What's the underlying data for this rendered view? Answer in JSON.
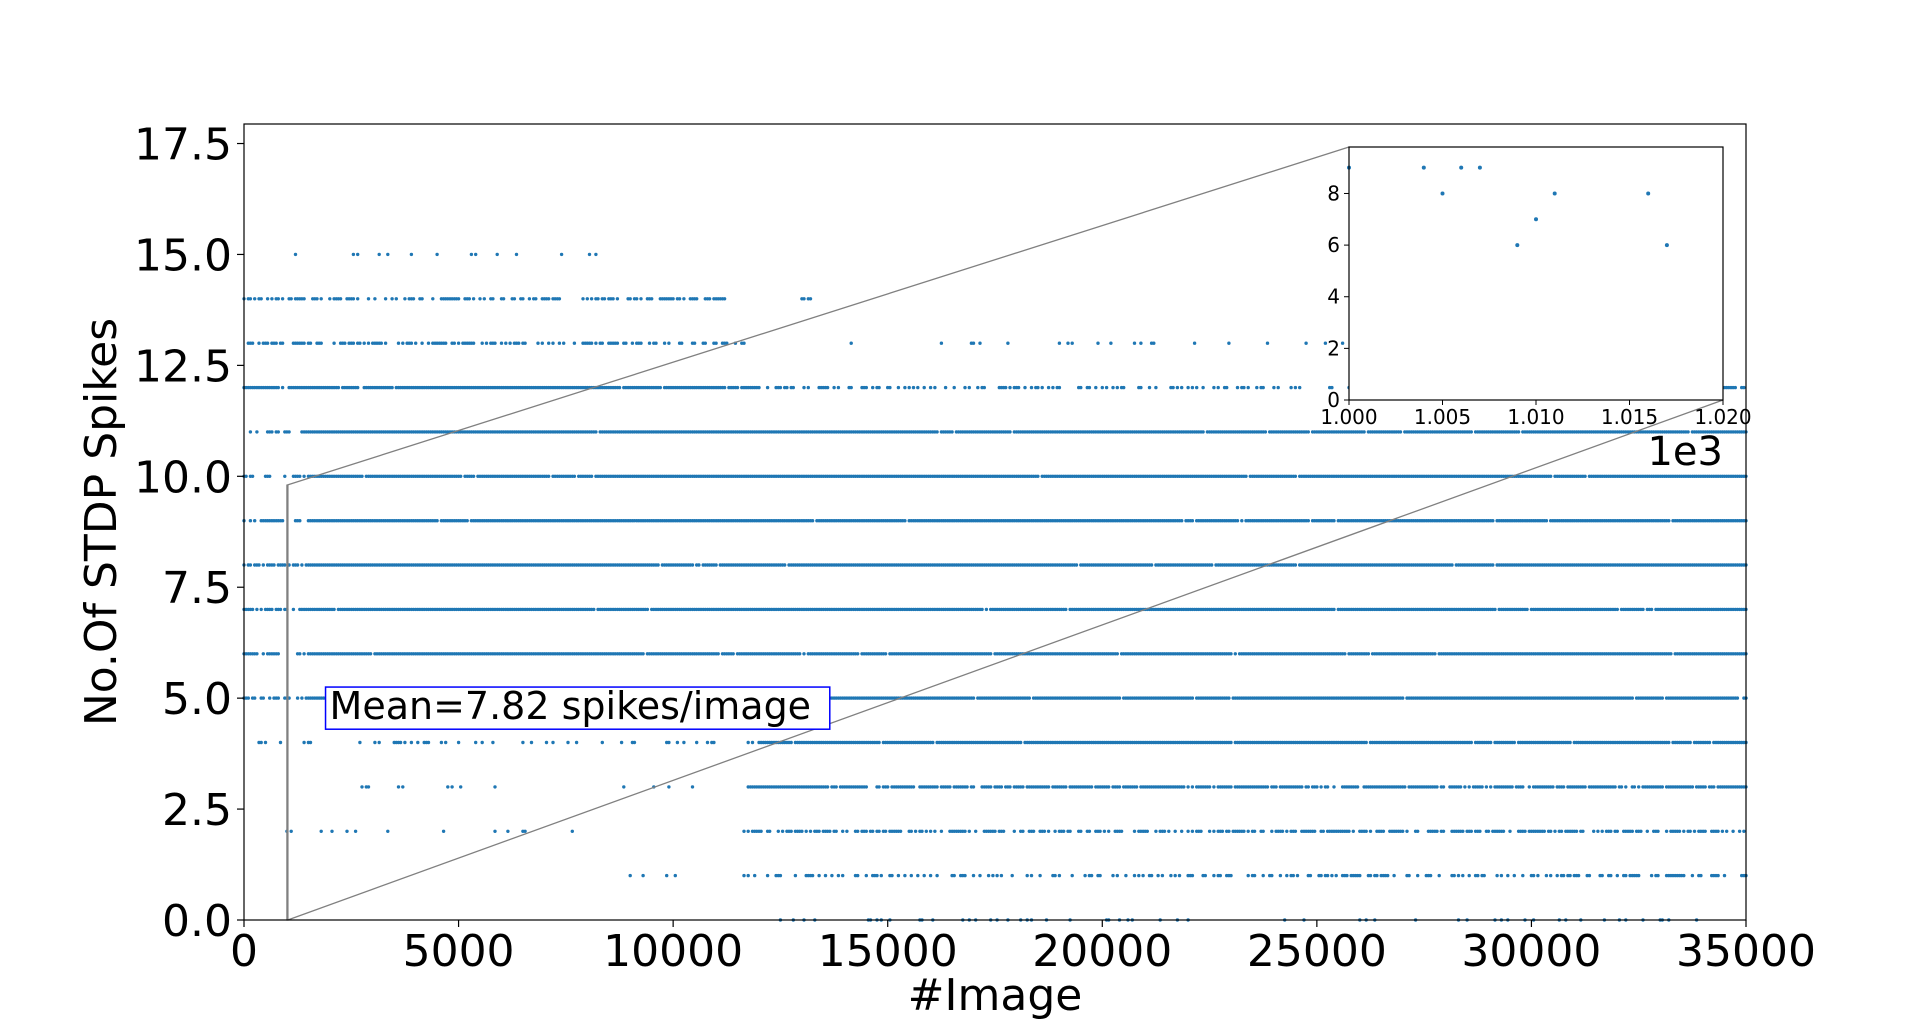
{
  "chart_data": [
    {
      "type": "scatter",
      "xlabel": "#Image",
      "ylabel": "No.Of STDP Spikes",
      "xlim": [
        0,
        35000
      ],
      "ylim": [
        0,
        18
      ],
      "x_ticks": [
        "0",
        "5000",
        "10000",
        "15000",
        "20000",
        "25000",
        "30000",
        "35000"
      ],
      "y_ticks": [
        "0.0",
        "2.5",
        "5.0",
        "7.5",
        "10.0",
        "12.5",
        "15.0",
        "17.5"
      ],
      "grid": false,
      "marker_color": "#1f77b4",
      "annotation": "Mean=7.82 spikes/image",
      "annotation_box_color": "#0000ff",
      "bands": [
        {
          "y": 15,
          "x_ranges": [
            [
              200,
              8600
            ]
          ],
          "density": "sparse"
        },
        {
          "y": 14,
          "x_ranges": [
            [
              0,
              11200
            ],
            [
              13000,
              13200
            ]
          ],
          "density": "medium"
        },
        {
          "y": 13,
          "x_ranges": [
            [
              0,
              11700
            ],
            [
              13700,
              26000
            ]
          ],
          "density": "medium-sparse"
        },
        {
          "y": 12,
          "x_ranges": [
            [
              0,
              35000
            ]
          ],
          "density": "dense-then-sparse"
        },
        {
          "y": 11,
          "x_ranges": [
            [
              0,
              35000
            ]
          ],
          "density": "dense"
        },
        {
          "y": 10,
          "x_ranges": [
            [
              0,
              35000
            ]
          ],
          "density": "dense"
        },
        {
          "y": 9,
          "x_ranges": [
            [
              0,
              35000
            ]
          ],
          "density": "dense"
        },
        {
          "y": 8,
          "x_ranges": [
            [
              0,
              35000
            ]
          ],
          "density": "dense"
        },
        {
          "y": 7,
          "x_ranges": [
            [
              0,
              35000
            ]
          ],
          "density": "dense"
        },
        {
          "y": 6,
          "x_ranges": [
            [
              0,
              35000
            ]
          ],
          "density": "dense"
        },
        {
          "y": 5,
          "x_ranges": [
            [
              0,
              35000
            ]
          ],
          "density": "dense"
        },
        {
          "y": 4,
          "x_ranges": [
            [
              300,
              35000
            ]
          ],
          "density": "sparse-then-dense"
        },
        {
          "y": 3,
          "x_ranges": [
            [
              2000,
              35000
            ]
          ],
          "density": "sparse-then-dense"
        },
        {
          "y": 2,
          "x_ranges": [
            [
              1000,
              35000
            ]
          ],
          "density": "sparse-then-dense"
        },
        {
          "y": 1,
          "x_ranges": [
            [
              8800,
              35000
            ]
          ],
          "density": "sparse-then-medium"
        },
        {
          "y": 0,
          "x_ranges": [
            [
              12200,
              35000
            ]
          ],
          "density": "sparse"
        }
      ],
      "zoom_region": {
        "x": [
          1000,
          1020
        ],
        "y": [
          0,
          9.8
        ]
      }
    },
    {
      "type": "scatter",
      "name": "inset",
      "xlim": [
        1.0,
        1.02
      ],
      "ylim": [
        0,
        9.8
      ],
      "x_ticks": [
        "1.000",
        "1.005",
        "1.010",
        "1.015",
        "1.020"
      ],
      "y_ticks": [
        "0",
        "2",
        "4",
        "6",
        "8"
      ],
      "x_offset_label": "1e3",
      "points": [
        {
          "x": 1.0,
          "y": 9
        },
        {
          "x": 1.004,
          "y": 9
        },
        {
          "x": 1.005,
          "y": 8
        },
        {
          "x": 1.006,
          "y": 9
        },
        {
          "x": 1.007,
          "y": 9
        },
        {
          "x": 1.009,
          "y": 6
        },
        {
          "x": 1.01,
          "y": 7
        },
        {
          "x": 1.011,
          "y": 8
        },
        {
          "x": 1.016,
          "y": 8
        },
        {
          "x": 1.017,
          "y": 6
        }
      ],
      "marker_color": "#1f77b4"
    }
  ]
}
